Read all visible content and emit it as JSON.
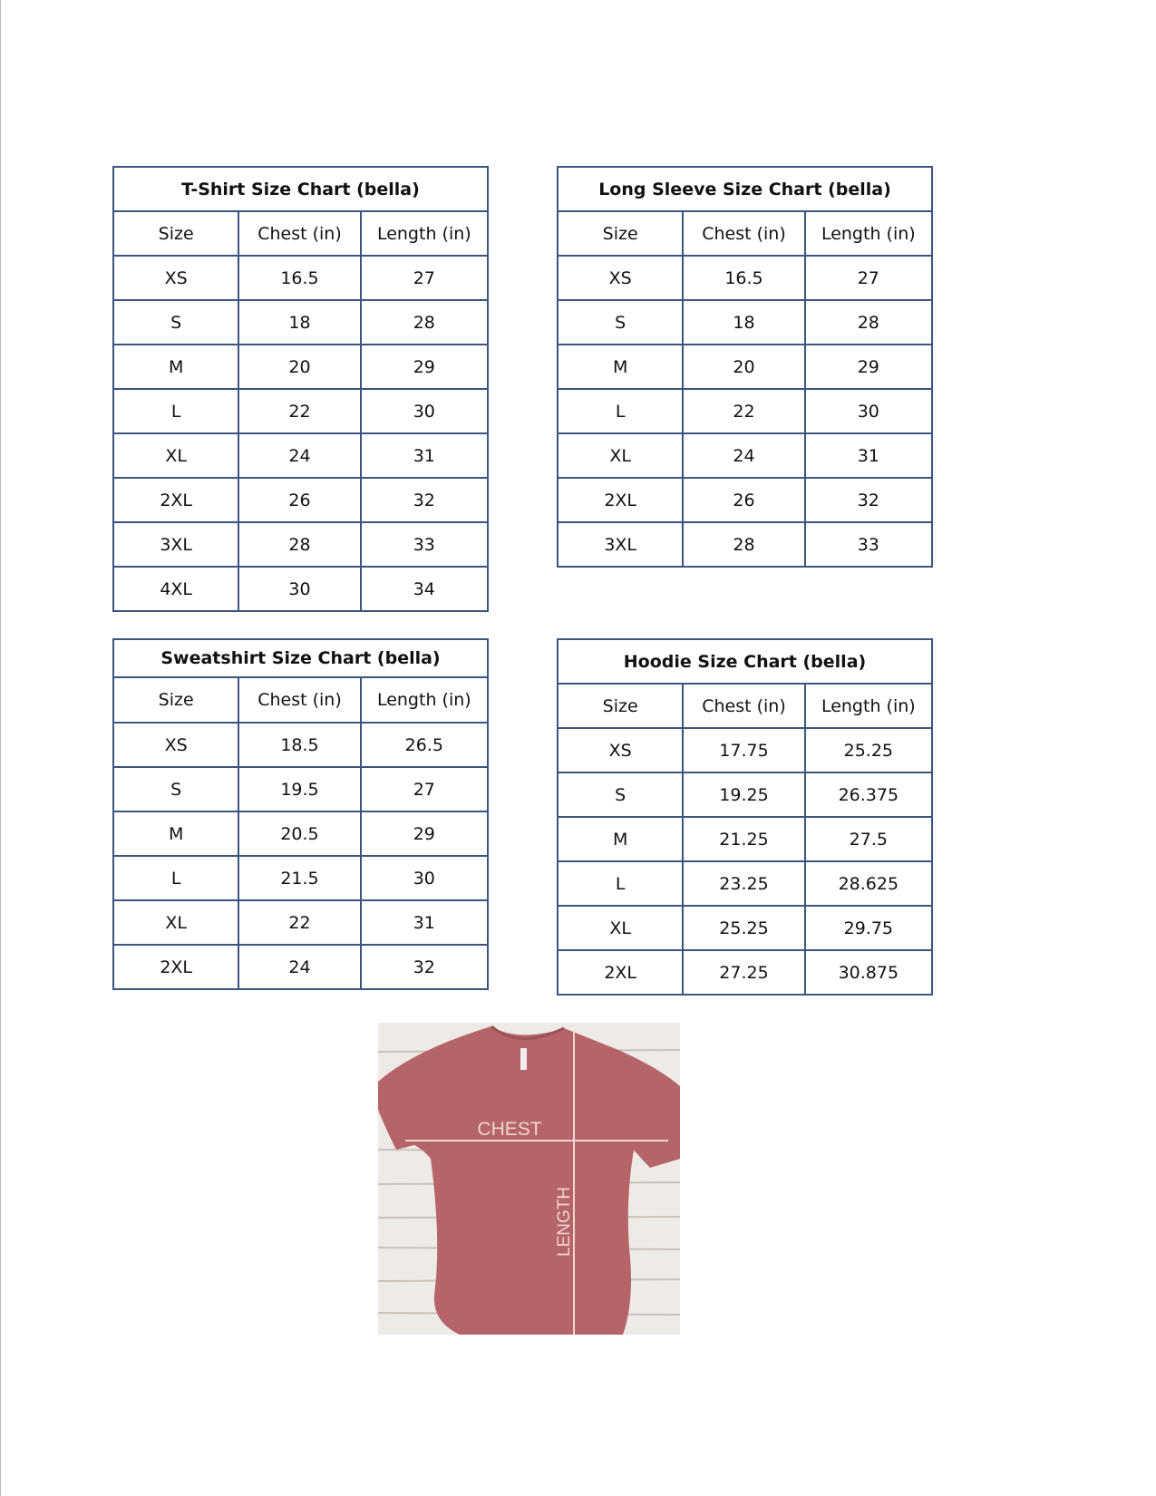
{
  "tables": [
    {
      "title": "T-Shirt Size Chart  (bella)",
      "headers": [
        "Size",
        "Chest (in)",
        "Length (in)"
      ],
      "rows": [
        [
          "XS",
          "16.5",
          "27"
        ],
        [
          "S",
          "18",
          "28"
        ],
        [
          "M",
          "20",
          "29"
        ],
        [
          "L",
          "22",
          "30"
        ],
        [
          "XL",
          "24",
          "31"
        ],
        [
          "2XL",
          "26",
          "32"
        ],
        [
          "3XL",
          "28",
          "33"
        ],
        [
          "4XL",
          "30",
          "34"
        ]
      ]
    },
    {
      "title": "Long Sleeve Size Chart  (bella)",
      "headers": [
        "Size",
        "Chest (in)",
        "Length (in)"
      ],
      "rows": [
        [
          "XS",
          "16.5",
          "27"
        ],
        [
          "S",
          "18",
          "28"
        ],
        [
          "M",
          "20",
          "29"
        ],
        [
          "L",
          "22",
          "30"
        ],
        [
          "XL",
          "24",
          "31"
        ],
        [
          "2XL",
          "26",
          "32"
        ],
        [
          "3XL",
          "28",
          "33"
        ]
      ]
    },
    {
      "title": "Sweatshirt Size Chart (bella)",
      "headers": [
        "Size",
        "Chest (in)",
        "Length (in)"
      ],
      "rows": [
        [
          "XS",
          "18.5",
          "26.5"
        ],
        [
          "S",
          "19.5",
          "27"
        ],
        [
          "M",
          "20.5",
          "29"
        ],
        [
          "L",
          "21.5",
          "30"
        ],
        [
          "XL",
          "22",
          "31"
        ],
        [
          "2XL",
          "24",
          "32"
        ]
      ]
    },
    {
      "title": "Hoodie Size Chart (bella)",
      "headers": [
        "Size",
        "Chest (in)",
        "Length (in)"
      ],
      "rows": [
        [
          "XS",
          "17.75",
          "25.25"
        ],
        [
          "S",
          "19.25",
          "26.375"
        ],
        [
          "M",
          "21.25",
          "27.5"
        ],
        [
          "L",
          "23.25",
          "28.625"
        ],
        [
          "XL",
          "25.25",
          "29.75"
        ],
        [
          "2XL",
          "27.25",
          "30.875"
        ]
      ]
    }
  ],
  "image": {
    "chest_label": "CHEST",
    "length_label": "LENGTH",
    "shirt_color": "#b5656a",
    "border_color": "#3b5580"
  }
}
